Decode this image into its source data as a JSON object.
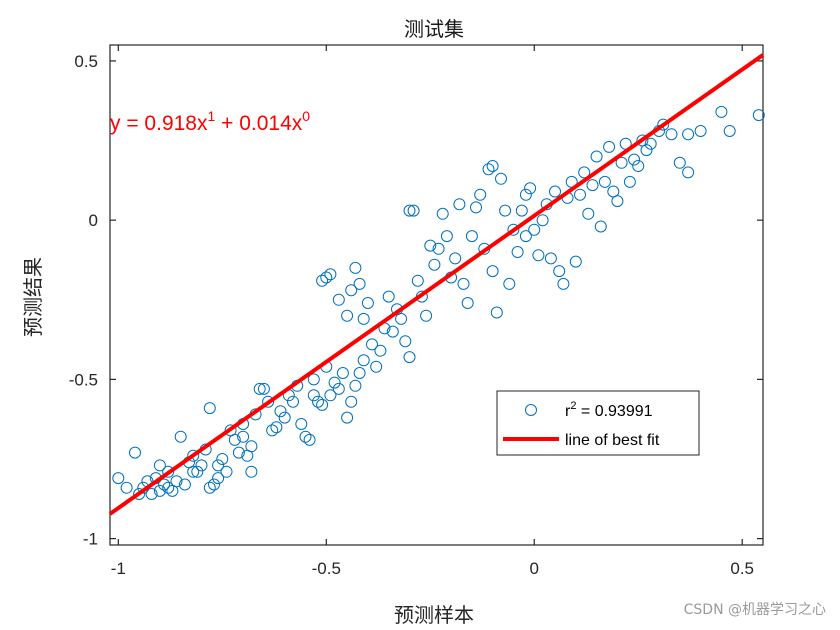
{
  "chart_data": {
    "type": "scatter",
    "title": "测试集",
    "xlabel": "预测样本",
    "ylabel": "预测结果",
    "xlim": [
      -1.02,
      0.55
    ],
    "ylim": [
      -1.02,
      0.55
    ],
    "xticks": [
      "-1",
      "-0.5",
      "0",
      "0.5"
    ],
    "yticks": [
      "-1",
      "-0.5",
      "0",
      "0.5"
    ],
    "xtick_values": [
      -1,
      -0.5,
      0,
      0.5
    ],
    "ytick_values": [
      -1,
      -0.5,
      0,
      0.5
    ],
    "grid": false,
    "legend_position": "lower-right",
    "equation": {
      "prefix": "y = 0.918x",
      "exp1": "1",
      "middle": " + 0.014x",
      "exp2": "0"
    },
    "fit": {
      "slope": 0.918,
      "intercept": 0.014
    },
    "legend": [
      {
        "marker": "circle",
        "prefix": "r",
        "sup": "2",
        "suffix": " = 0.93991"
      },
      {
        "marker": "line",
        "text": "line of best fit"
      }
    ],
    "colors": {
      "points": "#0072BD",
      "fit": "#ff0000",
      "text": "#262626"
    },
    "points": [
      [
        -1.0,
        -0.81
      ],
      [
        -0.98,
        -0.84
      ],
      [
        -0.96,
        -0.73
      ],
      [
        -0.95,
        -0.86
      ],
      [
        -0.94,
        -0.84
      ],
      [
        -0.93,
        -0.82
      ],
      [
        -0.92,
        -0.86
      ],
      [
        -0.91,
        -0.81
      ],
      [
        -0.9,
        -0.77
      ],
      [
        -0.9,
        -0.85
      ],
      [
        -0.89,
        -0.83
      ],
      [
        -0.88,
        -0.84
      ],
      [
        -0.88,
        -0.79
      ],
      [
        -0.87,
        -0.85
      ],
      [
        -0.86,
        -0.82
      ],
      [
        -0.85,
        -0.68
      ],
      [
        -0.84,
        -0.83
      ],
      [
        -0.83,
        -0.76
      ],
      [
        -0.82,
        -0.74
      ],
      [
        -0.82,
        -0.79
      ],
      [
        -0.81,
        -0.79
      ],
      [
        -0.8,
        -0.77
      ],
      [
        -0.79,
        -0.72
      ],
      [
        -0.78,
        -0.84
      ],
      [
        -0.78,
        -0.59
      ],
      [
        -0.77,
        -0.83
      ],
      [
        -0.76,
        -0.77
      ],
      [
        -0.76,
        -0.81
      ],
      [
        -0.75,
        -0.75
      ],
      [
        -0.74,
        -0.79
      ],
      [
        -0.73,
        -0.66
      ],
      [
        -0.72,
        -0.69
      ],
      [
        -0.71,
        -0.73
      ],
      [
        -0.7,
        -0.64
      ],
      [
        -0.7,
        -0.68
      ],
      [
        -0.69,
        -0.74
      ],
      [
        -0.68,
        -0.79
      ],
      [
        -0.68,
        -0.71
      ],
      [
        -0.67,
        -0.61
      ],
      [
        -0.66,
        -0.53
      ],
      [
        -0.65,
        -0.53
      ],
      [
        -0.64,
        -0.57
      ],
      [
        -0.63,
        -0.66
      ],
      [
        -0.62,
        -0.65
      ],
      [
        -0.61,
        -0.6
      ],
      [
        -0.6,
        -0.62
      ],
      [
        -0.59,
        -0.55
      ],
      [
        -0.58,
        -0.57
      ],
      [
        -0.57,
        -0.52
      ],
      [
        -0.56,
        -0.64
      ],
      [
        -0.55,
        -0.68
      ],
      [
        -0.54,
        -0.69
      ],
      [
        -0.53,
        -0.55
      ],
      [
        -0.53,
        -0.5
      ],
      [
        -0.52,
        -0.57
      ],
      [
        -0.51,
        -0.58
      ],
      [
        -0.5,
        -0.46
      ],
      [
        -0.49,
        -0.55
      ],
      [
        -0.48,
        -0.51
      ],
      [
        -0.47,
        -0.53
      ],
      [
        -0.46,
        -0.48
      ],
      [
        -0.45,
        -0.62
      ],
      [
        -0.44,
        -0.57
      ],
      [
        -0.43,
        -0.52
      ],
      [
        -0.42,
        -0.48
      ],
      [
        -0.41,
        -0.44
      ],
      [
        -0.5,
        -0.18
      ],
      [
        -0.51,
        -0.19
      ],
      [
        -0.49,
        -0.17
      ],
      [
        -0.47,
        -0.25
      ],
      [
        -0.45,
        -0.3
      ],
      [
        -0.44,
        -0.22
      ],
      [
        -0.43,
        -0.15
      ],
      [
        -0.42,
        -0.2
      ],
      [
        -0.41,
        -0.31
      ],
      [
        -0.4,
        -0.26
      ],
      [
        -0.39,
        -0.39
      ],
      [
        -0.38,
        -0.46
      ],
      [
        -0.37,
        -0.41
      ],
      [
        -0.36,
        -0.34
      ],
      [
        -0.35,
        -0.24
      ],
      [
        -0.34,
        -0.35
      ],
      [
        -0.33,
        -0.28
      ],
      [
        -0.32,
        -0.31
      ],
      [
        -0.31,
        -0.38
      ],
      [
        -0.3,
        -0.43
      ],
      [
        -0.3,
        0.03
      ],
      [
        -0.29,
        0.03
      ],
      [
        -0.28,
        -0.19
      ],
      [
        -0.27,
        -0.24
      ],
      [
        -0.26,
        -0.3
      ],
      [
        -0.25,
        -0.08
      ],
      [
        -0.24,
        -0.14
      ],
      [
        -0.23,
        -0.09
      ],
      [
        -0.22,
        0.02
      ],
      [
        -0.21,
        -0.05
      ],
      [
        -0.2,
        -0.18
      ],
      [
        -0.19,
        -0.12
      ],
      [
        -0.18,
        0.05
      ],
      [
        -0.17,
        -0.2
      ],
      [
        -0.16,
        -0.26
      ],
      [
        -0.15,
        -0.05
      ],
      [
        -0.14,
        0.04
      ],
      [
        -0.13,
        0.08
      ],
      [
        -0.12,
        -0.09
      ],
      [
        -0.11,
        0.16
      ],
      [
        -0.1,
        -0.16
      ],
      [
        -0.1,
        0.17
      ],
      [
        -0.09,
        -0.29
      ],
      [
        -0.08,
        0.13
      ],
      [
        -0.07,
        0.03
      ],
      [
        -0.06,
        -0.2
      ],
      [
        -0.05,
        -0.03
      ],
      [
        -0.04,
        -0.1
      ],
      [
        -0.03,
        0.03
      ],
      [
        -0.02,
        0.08
      ],
      [
        -0.02,
        -0.05
      ],
      [
        -0.01,
        0.1
      ],
      [
        0.0,
        -0.03
      ],
      [
        0.01,
        -0.11
      ],
      [
        0.02,
        0.0
      ],
      [
        0.03,
        0.05
      ],
      [
        0.04,
        -0.12
      ],
      [
        0.05,
        0.09
      ],
      [
        0.06,
        -0.16
      ],
      [
        0.07,
        -0.2
      ],
      [
        0.08,
        0.07
      ],
      [
        0.09,
        0.12
      ],
      [
        0.1,
        -0.13
      ],
      [
        0.11,
        0.08
      ],
      [
        0.12,
        0.15
      ],
      [
        0.13,
        0.02
      ],
      [
        0.14,
        0.11
      ],
      [
        0.15,
        0.2
      ],
      [
        0.16,
        -0.02
      ],
      [
        0.17,
        0.12
      ],
      [
        0.18,
        0.23
      ],
      [
        0.19,
        0.09
      ],
      [
        0.2,
        0.06
      ],
      [
        0.21,
        0.18
      ],
      [
        0.22,
        0.24
      ],
      [
        0.23,
        0.12
      ],
      [
        0.24,
        0.19
      ],
      [
        0.25,
        0.17
      ],
      [
        0.26,
        0.25
      ],
      [
        0.27,
        0.22
      ],
      [
        0.28,
        0.24
      ],
      [
        0.3,
        0.28
      ],
      [
        0.31,
        0.3
      ],
      [
        0.33,
        0.27
      ],
      [
        0.35,
        0.18
      ],
      [
        0.37,
        0.15
      ],
      [
        0.37,
        0.27
      ],
      [
        0.4,
        0.28
      ],
      [
        0.45,
        0.34
      ],
      [
        0.47,
        0.28
      ],
      [
        0.54,
        0.33
      ]
    ]
  },
  "watermark": "CSDN @机器学习之心"
}
